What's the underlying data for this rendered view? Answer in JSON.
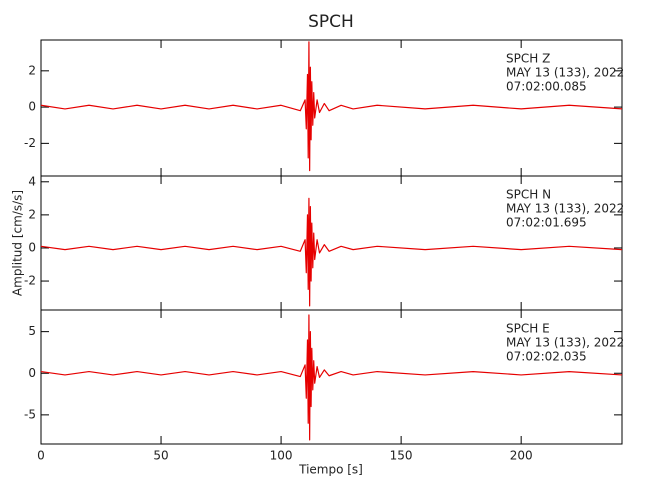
{
  "title": "SPCH",
  "y_label": "Amplitud [cm/s/s]",
  "x_label": "Tiempo [s]",
  "chart_data": [
    {
      "type": "line",
      "color": "#e60000",
      "annotations": [
        "SPCH   Z",
        "MAY 13 (133), 2022",
        "07:02:00.085"
      ],
      "x": [
        0,
        10,
        20,
        30,
        40,
        50,
        60,
        70,
        80,
        90,
        100,
        108,
        110,
        110.5,
        111,
        111.3,
        111.6,
        111.9,
        112.2,
        112.5,
        112.8,
        113.2,
        113.6,
        114,
        115,
        116,
        118,
        120,
        125,
        130,
        140,
        160,
        180,
        200,
        220,
        242
      ],
      "values": [
        0.1,
        -0.1,
        0.1,
        -0.1,
        0.1,
        -0.1,
        0.1,
        -0.1,
        0.1,
        -0.1,
        0.1,
        -0.2,
        0.4,
        -1.2,
        1.8,
        -2.8,
        3.6,
        -3.5,
        2.2,
        -1.8,
        1.4,
        -1.0,
        0.8,
        -0.6,
        0.4,
        -0.3,
        0.2,
        -0.2,
        0.1,
        -0.1,
        0.1,
        -0.1,
        0.1,
        -0.1,
        0.1,
        -0.1
      ],
      "xlim": [
        0,
        242
      ],
      "ylim": [
        -3.8,
        3.7
      ],
      "yticks": [
        -2,
        0,
        2
      ]
    },
    {
      "type": "line",
      "color": "#e60000",
      "annotations": [
        "SPCH   N",
        "MAY 13 (133), 2022",
        "07:02:01.695"
      ],
      "x": [
        0,
        10,
        20,
        30,
        40,
        50,
        60,
        70,
        80,
        90,
        100,
        108,
        110,
        110.5,
        111,
        111.3,
        111.6,
        111.9,
        112.2,
        112.5,
        112.8,
        113.2,
        113.6,
        114,
        115,
        116,
        118,
        120,
        125,
        130,
        140,
        160,
        180,
        200,
        220,
        242
      ],
      "values": [
        0.1,
        -0.1,
        0.1,
        -0.1,
        0.1,
        -0.1,
        0.1,
        -0.1,
        0.1,
        -0.1,
        0.1,
        -0.2,
        0.5,
        -1.5,
        2.0,
        -2.5,
        3.0,
        -3.5,
        2.5,
        -2.0,
        1.5,
        -1.2,
        0.9,
        -0.7,
        0.5,
        -0.3,
        0.2,
        -0.2,
        0.1,
        -0.1,
        0.1,
        -0.1,
        0.1,
        -0.1,
        0.1,
        -0.1
      ],
      "xlim": [
        0,
        242
      ],
      "ylim": [
        -3.75,
        4.35
      ],
      "yticks": [
        -2,
        0,
        2,
        4
      ]
    },
    {
      "type": "line",
      "color": "#e60000",
      "annotations": [
        "SPCH   E",
        "MAY 13 (133), 2022",
        "07:02:02.035"
      ],
      "x": [
        0,
        10,
        20,
        30,
        40,
        50,
        60,
        70,
        80,
        90,
        100,
        108,
        110,
        110.5,
        111,
        111.3,
        111.6,
        111.9,
        112.2,
        112.5,
        112.8,
        113.2,
        113.6,
        114,
        115,
        116,
        118,
        120,
        125,
        130,
        140,
        160,
        180,
        200,
        220,
        242
      ],
      "values": [
        0.2,
        -0.2,
        0.2,
        -0.2,
        0.2,
        -0.2,
        0.2,
        -0.2,
        0.2,
        -0.2,
        0.2,
        -0.4,
        1.0,
        -3,
        4,
        -6,
        7,
        -8,
        5,
        -4,
        3,
        -2,
        1.5,
        -1.2,
        0.8,
        -0.5,
        0.4,
        -0.3,
        0.2,
        -0.2,
        0.2,
        -0.2,
        0.2,
        -0.2,
        0.2,
        -0.2
      ],
      "xlim": [
        0,
        242
      ],
      "ylim": [
        -8.5,
        7.6
      ],
      "yticks": [
        -5,
        0,
        5
      ],
      "xticks": [
        0,
        50,
        100,
        150,
        200
      ]
    }
  ]
}
